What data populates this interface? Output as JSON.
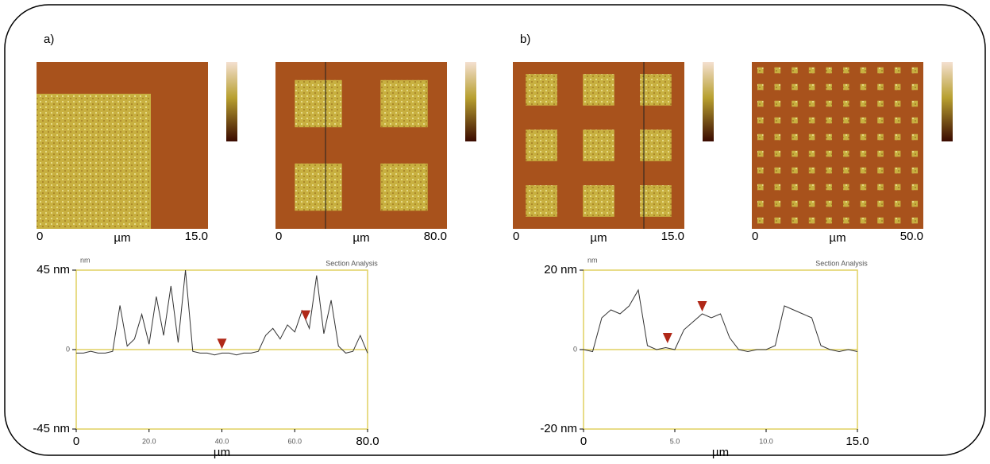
{
  "panels": [
    {
      "label": "a)",
      "images": [
        {
          "labels": [
            "0",
            "µm",
            "15.0"
          ]
        },
        {
          "labels": [
            "0",
            "µm",
            "80.0"
          ]
        }
      ],
      "profile": {
        "title": "Section Analysis",
        "unit": "nm",
        "xlabel": "µm",
        "xlim": [
          0,
          80
        ],
        "ylim": [
          -45,
          45
        ],
        "xticks": [
          0,
          {
            "value": 20,
            "label": "20.0"
          },
          {
            "value": 40,
            "label": "40.0"
          },
          {
            "value": 60,
            "label": "60.0"
          },
          {
            "value": 80,
            "label": "80.0"
          }
        ],
        "yticks": [
          {
            "value": 45,
            "label": "45 nm"
          },
          0,
          {
            "value": -45,
            "label": "-45 nm"
          }
        ],
        "x": [
          0,
          2,
          4,
          6,
          8,
          10,
          12,
          14,
          16,
          18,
          20,
          22,
          24,
          26,
          28,
          30,
          32,
          34,
          36,
          38,
          40,
          42,
          44,
          46,
          48,
          50,
          52,
          54,
          56,
          58,
          60,
          62,
          64,
          66,
          68,
          70,
          72,
          74,
          76,
          78,
          80
        ],
        "y": [
          -2,
          -2,
          -1,
          -2,
          -2,
          -1,
          25,
          2,
          6,
          20,
          3,
          30,
          8,
          36,
          4,
          45,
          -1,
          -2,
          -2,
          -3,
          -2,
          -2,
          -3,
          -2,
          -2,
          -1,
          8,
          12,
          6,
          14,
          10,
          22,
          12,
          42,
          9,
          28,
          2,
          -2,
          -1,
          8,
          -2
        ],
        "markers": {
          "x": [
            40,
            63
          ],
          "y": [
            -1,
            15
          ]
        }
      }
    },
    {
      "label": "b)",
      "images": [
        {
          "labels": [
            "0",
            "µm",
            "15.0"
          ]
        },
        {
          "labels": [
            "0",
            "µm",
            "50.0"
          ]
        }
      ],
      "profile": {
        "title": "Section Analysis",
        "unit": "nm",
        "xlabel": "µm",
        "xlim": [
          0,
          15
        ],
        "ylim": [
          -20,
          20
        ],
        "xticks": [
          0,
          {
            "value": 5,
            "label": "5.0"
          },
          {
            "value": 10,
            "label": "10.0"
          },
          {
            "value": 15,
            "label": "15.0"
          }
        ],
        "yticks": [
          {
            "value": 20,
            "label": "20 nm"
          },
          0,
          {
            "value": -20,
            "label": "-20 nm"
          }
        ],
        "x": [
          0,
          0.5,
          1,
          1.5,
          2,
          2.5,
          3,
          3.5,
          4,
          4.5,
          5,
          5.5,
          6,
          6.5,
          7,
          7.5,
          8,
          8.5,
          9,
          9.5,
          10,
          10.5,
          11,
          11.5,
          12,
          12.5,
          13,
          13.5,
          14,
          14.5,
          15
        ],
        "y": [
          0,
          -0.5,
          8,
          10,
          9,
          11,
          15,
          1,
          0,
          0.5,
          0,
          5,
          7,
          9,
          8,
          9,
          3,
          0,
          -0.5,
          0,
          0,
          1,
          11,
          10,
          9,
          8,
          1,
          0,
          -0.5,
          0,
          -0.5
        ],
        "markers": {
          "x": [
            4.6,
            6.5
          ],
          "y": [
            1,
            9
          ]
        }
      }
    }
  ]
}
